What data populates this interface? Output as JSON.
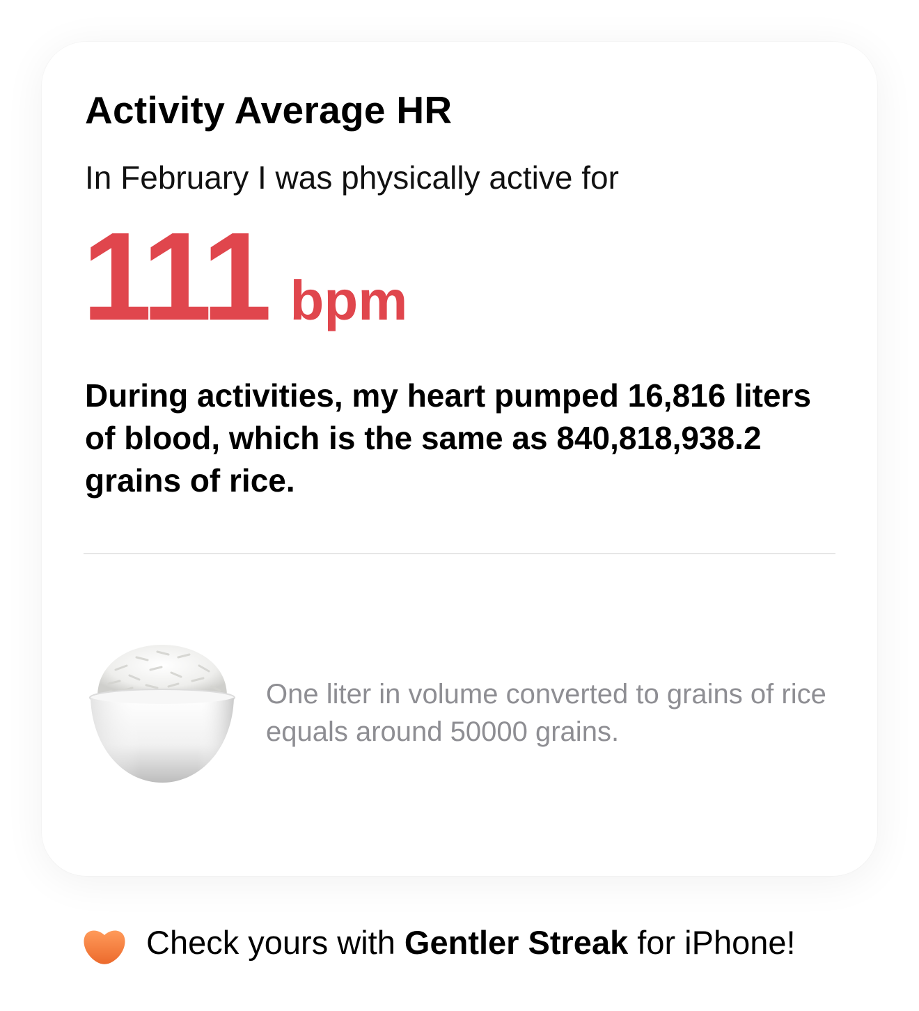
{
  "card": {
    "title": "Activity Average HR",
    "subtitle": "In February I was physically active for",
    "metric": {
      "value": "111",
      "unit": "bpm",
      "color": "#e0464d"
    },
    "statement": "During activities, my heart pumped 16,816 liters of blood, which is the same as 840,818,938.2 grains of rice.",
    "illustration_icon": "rice-bowl-icon",
    "note": "One liter in volume converted to grains of rice equals around 50000 grains."
  },
  "footer": {
    "icon": "gentler-streak-icon",
    "icon_color": "#f47c3c",
    "prefix": "Check yours with ",
    "app_name": "Gentler Streak",
    "suffix": " for iPhone!"
  }
}
